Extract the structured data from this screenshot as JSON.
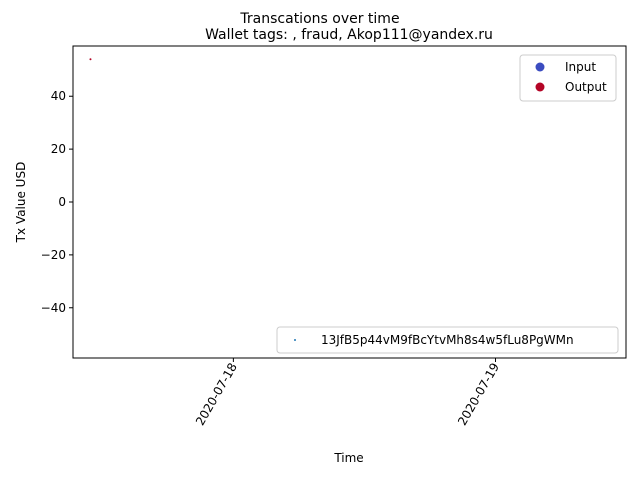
{
  "chart_data": {
    "type": "scatter",
    "suptitle": "Transcations over time",
    "title": "Wallet tags: , fraud, Akop111@yandex.ru",
    "xlabel": "Time",
    "ylabel": "Tx Value USD",
    "xlim": [
      "2020-07-17T09:19",
      "2020-07-19T11:57"
    ],
    "ylim": [
      -59,
      59
    ],
    "x_ticks": [
      {
        "value": "2020-07-18T00:00",
        "label": "2020-07-18"
      },
      {
        "value": "2020-07-19T00:00",
        "label": "2020-07-19"
      }
    ],
    "y_ticks": [
      {
        "value": 40,
        "label": "40"
      },
      {
        "value": 20,
        "label": "20"
      },
      {
        "value": 0,
        "label": "0"
      },
      {
        "value": -20,
        "label": "−20"
      },
      {
        "value": -40,
        "label": "−40"
      }
    ],
    "grid": false,
    "series": [
      {
        "name": "Output",
        "color": "#b40426",
        "points": [
          {
            "x": "2020-07-17T10:55",
            "y": 54
          }
        ]
      }
    ],
    "legends": [
      {
        "placement": "top-right",
        "entries": [
          {
            "label": "Input",
            "color": "#3b4cc0",
            "marker": "circle"
          },
          {
            "label": "Output",
            "color": "#b40426",
            "marker": "circle"
          }
        ]
      },
      {
        "placement": "lower-right",
        "entries": [
          {
            "label": "13JfB5p44vM9fBcYtvMh8s4w5fLu8PgWMn",
            "color": "#1f77b4",
            "marker": "dot"
          }
        ]
      }
    ]
  }
}
